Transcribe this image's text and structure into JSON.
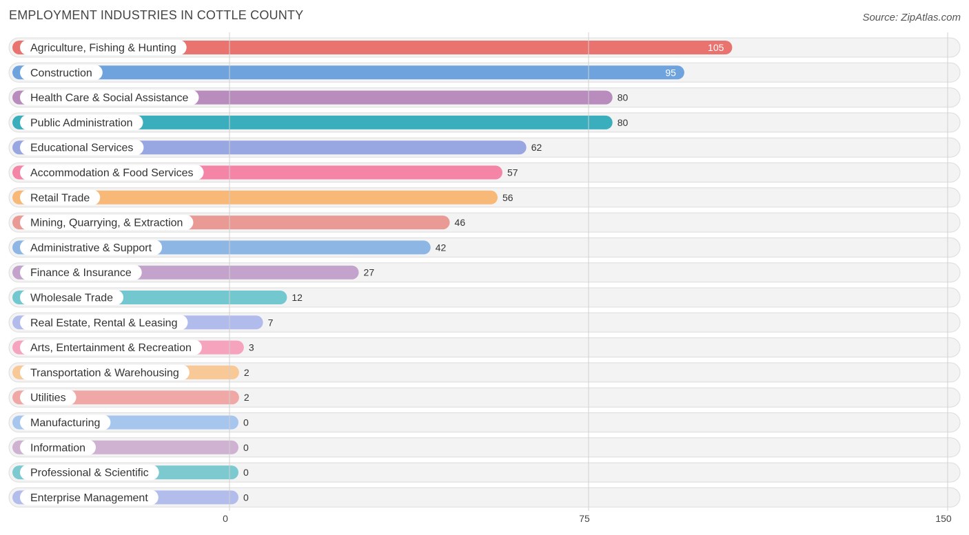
{
  "header": {
    "title": "EMPLOYMENT INDUSTRIES IN COTTLE COUNTY",
    "source": "Source: ZipAtlas.com"
  },
  "chart_data": {
    "type": "bar",
    "orientation": "horizontal",
    "title": "EMPLOYMENT INDUSTRIES IN COTTLE COUNTY",
    "xlabel": "",
    "ylabel": "",
    "xlim": [
      0,
      150
    ],
    "ticks": [
      0,
      75,
      150
    ],
    "categories": [
      "Agriculture, Fishing & Hunting",
      "Construction",
      "Health Care & Social Assistance",
      "Public Administration",
      "Educational Services",
      "Accommodation & Food Services",
      "Retail Trade",
      "Mining, Quarrying, & Extraction",
      "Administrative & Support",
      "Finance & Insurance",
      "Wholesale Trade",
      "Real Estate, Rental & Leasing",
      "Arts, Entertainment & Recreation",
      "Transportation & Warehousing",
      "Utilities",
      "Manufacturing",
      "Information",
      "Professional & Scientific",
      "Enterprise Management"
    ],
    "values": [
      105,
      95,
      80,
      80,
      62,
      57,
      56,
      46,
      42,
      27,
      12,
      7,
      3,
      2,
      2,
      0,
      0,
      0,
      0
    ],
    "colors": [
      "#e8736f",
      "#6ea3de",
      "#b88cbc",
      "#3aaebd",
      "#98a6e2",
      "#f585a7",
      "#f8b878",
      "#ea9a95",
      "#8eb6e4",
      "#c3a3cb",
      "#73c7cf",
      "#b2bcec",
      "#f6a4bd",
      "#f9c897",
      "#f0a8a6",
      "#a7c6ee",
      "#cfb1d2",
      "#7ccad0",
      "#b3bdec"
    ]
  }
}
